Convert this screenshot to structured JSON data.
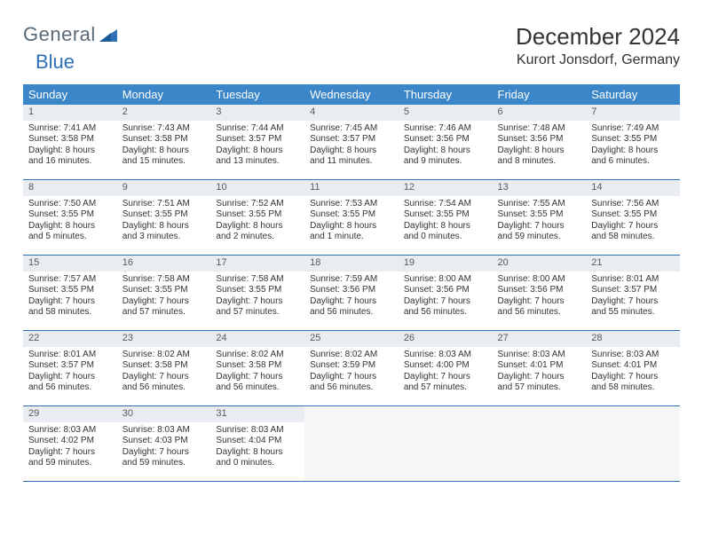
{
  "logo": {
    "word1": "General",
    "word2": "Blue"
  },
  "title": "December 2024",
  "location": "Kurort Jonsdorf, Germany",
  "header_bg": "#3b86c8",
  "weekdays": [
    "Sunday",
    "Monday",
    "Tuesday",
    "Wednesday",
    "Thursday",
    "Friday",
    "Saturday"
  ],
  "weeks": [
    [
      {
        "n": "1",
        "sr": "Sunrise: 7:41 AM",
        "ss": "Sunset: 3:58 PM",
        "d1": "Daylight: 8 hours",
        "d2": "and 16 minutes."
      },
      {
        "n": "2",
        "sr": "Sunrise: 7:43 AM",
        "ss": "Sunset: 3:58 PM",
        "d1": "Daylight: 8 hours",
        "d2": "and 15 minutes."
      },
      {
        "n": "3",
        "sr": "Sunrise: 7:44 AM",
        "ss": "Sunset: 3:57 PM",
        "d1": "Daylight: 8 hours",
        "d2": "and 13 minutes."
      },
      {
        "n": "4",
        "sr": "Sunrise: 7:45 AM",
        "ss": "Sunset: 3:57 PM",
        "d1": "Daylight: 8 hours",
        "d2": "and 11 minutes."
      },
      {
        "n": "5",
        "sr": "Sunrise: 7:46 AM",
        "ss": "Sunset: 3:56 PM",
        "d1": "Daylight: 8 hours",
        "d2": "and 9 minutes."
      },
      {
        "n": "6",
        "sr": "Sunrise: 7:48 AM",
        "ss": "Sunset: 3:56 PM",
        "d1": "Daylight: 8 hours",
        "d2": "and 8 minutes."
      },
      {
        "n": "7",
        "sr": "Sunrise: 7:49 AM",
        "ss": "Sunset: 3:55 PM",
        "d1": "Daylight: 8 hours",
        "d2": "and 6 minutes."
      }
    ],
    [
      {
        "n": "8",
        "sr": "Sunrise: 7:50 AM",
        "ss": "Sunset: 3:55 PM",
        "d1": "Daylight: 8 hours",
        "d2": "and 5 minutes."
      },
      {
        "n": "9",
        "sr": "Sunrise: 7:51 AM",
        "ss": "Sunset: 3:55 PM",
        "d1": "Daylight: 8 hours",
        "d2": "and 3 minutes."
      },
      {
        "n": "10",
        "sr": "Sunrise: 7:52 AM",
        "ss": "Sunset: 3:55 PM",
        "d1": "Daylight: 8 hours",
        "d2": "and 2 minutes."
      },
      {
        "n": "11",
        "sr": "Sunrise: 7:53 AM",
        "ss": "Sunset: 3:55 PM",
        "d1": "Daylight: 8 hours",
        "d2": "and 1 minute."
      },
      {
        "n": "12",
        "sr": "Sunrise: 7:54 AM",
        "ss": "Sunset: 3:55 PM",
        "d1": "Daylight: 8 hours",
        "d2": "and 0 minutes."
      },
      {
        "n": "13",
        "sr": "Sunrise: 7:55 AM",
        "ss": "Sunset: 3:55 PM",
        "d1": "Daylight: 7 hours",
        "d2": "and 59 minutes."
      },
      {
        "n": "14",
        "sr": "Sunrise: 7:56 AM",
        "ss": "Sunset: 3:55 PM",
        "d1": "Daylight: 7 hours",
        "d2": "and 58 minutes."
      }
    ],
    [
      {
        "n": "15",
        "sr": "Sunrise: 7:57 AM",
        "ss": "Sunset: 3:55 PM",
        "d1": "Daylight: 7 hours",
        "d2": "and 58 minutes."
      },
      {
        "n": "16",
        "sr": "Sunrise: 7:58 AM",
        "ss": "Sunset: 3:55 PM",
        "d1": "Daylight: 7 hours",
        "d2": "and 57 minutes."
      },
      {
        "n": "17",
        "sr": "Sunrise: 7:58 AM",
        "ss": "Sunset: 3:55 PM",
        "d1": "Daylight: 7 hours",
        "d2": "and 57 minutes."
      },
      {
        "n": "18",
        "sr": "Sunrise: 7:59 AM",
        "ss": "Sunset: 3:56 PM",
        "d1": "Daylight: 7 hours",
        "d2": "and 56 minutes."
      },
      {
        "n": "19",
        "sr": "Sunrise: 8:00 AM",
        "ss": "Sunset: 3:56 PM",
        "d1": "Daylight: 7 hours",
        "d2": "and 56 minutes."
      },
      {
        "n": "20",
        "sr": "Sunrise: 8:00 AM",
        "ss": "Sunset: 3:56 PM",
        "d1": "Daylight: 7 hours",
        "d2": "and 56 minutes."
      },
      {
        "n": "21",
        "sr": "Sunrise: 8:01 AM",
        "ss": "Sunset: 3:57 PM",
        "d1": "Daylight: 7 hours",
        "d2": "and 55 minutes."
      }
    ],
    [
      {
        "n": "22",
        "sr": "Sunrise: 8:01 AM",
        "ss": "Sunset: 3:57 PM",
        "d1": "Daylight: 7 hours",
        "d2": "and 56 minutes."
      },
      {
        "n": "23",
        "sr": "Sunrise: 8:02 AM",
        "ss": "Sunset: 3:58 PM",
        "d1": "Daylight: 7 hours",
        "d2": "and 56 minutes."
      },
      {
        "n": "24",
        "sr": "Sunrise: 8:02 AM",
        "ss": "Sunset: 3:58 PM",
        "d1": "Daylight: 7 hours",
        "d2": "and 56 minutes."
      },
      {
        "n": "25",
        "sr": "Sunrise: 8:02 AM",
        "ss": "Sunset: 3:59 PM",
        "d1": "Daylight: 7 hours",
        "d2": "and 56 minutes."
      },
      {
        "n": "26",
        "sr": "Sunrise: 8:03 AM",
        "ss": "Sunset: 4:00 PM",
        "d1": "Daylight: 7 hours",
        "d2": "and 57 minutes."
      },
      {
        "n": "27",
        "sr": "Sunrise: 8:03 AM",
        "ss": "Sunset: 4:01 PM",
        "d1": "Daylight: 7 hours",
        "d2": "and 57 minutes."
      },
      {
        "n": "28",
        "sr": "Sunrise: 8:03 AM",
        "ss": "Sunset: 4:01 PM",
        "d1": "Daylight: 7 hours",
        "d2": "and 58 minutes."
      }
    ],
    [
      {
        "n": "29",
        "sr": "Sunrise: 8:03 AM",
        "ss": "Sunset: 4:02 PM",
        "d1": "Daylight: 7 hours",
        "d2": "and 59 minutes."
      },
      {
        "n": "30",
        "sr": "Sunrise: 8:03 AM",
        "ss": "Sunset: 4:03 PM",
        "d1": "Daylight: 7 hours",
        "d2": "and 59 minutes."
      },
      {
        "n": "31",
        "sr": "Sunrise: 8:03 AM",
        "ss": "Sunset: 4:04 PM",
        "d1": "Daylight: 8 hours",
        "d2": "and 0 minutes."
      },
      {
        "empty": true
      },
      {
        "empty": true
      },
      {
        "empty": true
      },
      {
        "empty": true
      }
    ]
  ]
}
